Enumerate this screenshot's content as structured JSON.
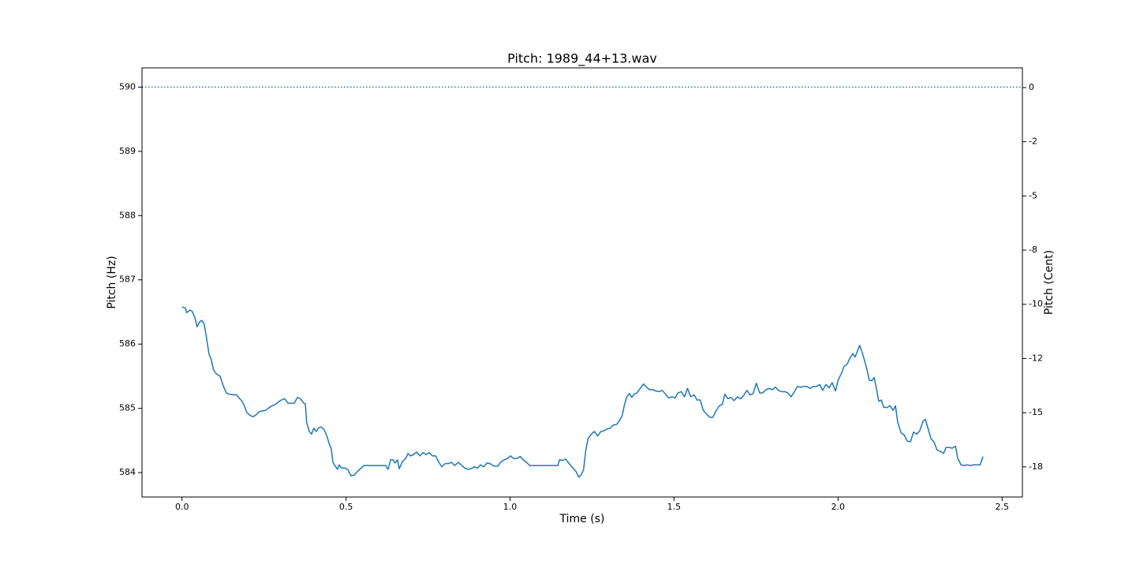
{
  "chart_data": {
    "type": "line",
    "title": "Pitch: 1989_44+13.wav",
    "x_label": "Time (s)",
    "y_label": "Pitch (Hz)",
    "y2_label": "Pitch (Cent)",
    "xlim": [
      -0.122,
      2.562
    ],
    "ylim": [
      583.62,
      590.3
    ],
    "y2lim": [
      -18.89,
      0.91
    ],
    "xticks": [
      {
        "value": 0,
        "label": "0.0"
      },
      0.5,
      {
        "value": 1,
        "label": "1.0"
      },
      1.5,
      {
        "value": 2,
        "label": "2.0"
      },
      2.5
    ],
    "yticks": [
      584,
      585,
      586,
      587,
      588,
      589,
      590
    ],
    "y2ticks": [
      0,
      {
        "value": -2.5,
        "label": "-2"
      },
      -5,
      {
        "value": -7.5,
        "label": "-8"
      },
      -10,
      {
        "value": -12.5,
        "label": "-12"
      },
      -15,
      {
        "value": -17.5,
        "label": "-18"
      }
    ],
    "reference_line": {
      "value": 590,
      "color": "#1f77b4",
      "style": "dotted"
    },
    "series": [
      {
        "color": "#1f77b4",
        "x": [
          0.0,
          0.01,
          0.014,
          0.024,
          0.031,
          0.039,
          0.046,
          0.053,
          0.06,
          0.067,
          0.075,
          0.082,
          0.089,
          0.096,
          0.104,
          0.116,
          0.125,
          0.135,
          0.144,
          0.157,
          0.166,
          0.176,
          0.183,
          0.19,
          0.197,
          0.207,
          0.217,
          0.226,
          0.236,
          0.246,
          0.255,
          0.265,
          0.275,
          0.284,
          0.294,
          0.303,
          0.313,
          0.323,
          0.332,
          0.342,
          0.352,
          0.361,
          0.371,
          0.376,
          0.38,
          0.388,
          0.395,
          0.402,
          0.409,
          0.417,
          0.424,
          0.433,
          0.441,
          0.448,
          0.455,
          0.46,
          0.467,
          0.474,
          0.479,
          0.486,
          0.498,
          0.506,
          0.515,
          0.525,
          0.535,
          0.544,
          0.554,
          0.578,
          0.602,
          0.621,
          0.628,
          0.636,
          0.643,
          0.65,
          0.657,
          0.662,
          0.672,
          0.682,
          0.689,
          0.696,
          0.706,
          0.715,
          0.725,
          0.735,
          0.744,
          0.754,
          0.763,
          0.773,
          0.783,
          0.792,
          0.802,
          0.812,
          0.821,
          0.831,
          0.843,
          0.853,
          0.862,
          0.872,
          0.881,
          0.891,
          0.901,
          0.91,
          0.92,
          0.93,
          0.939,
          0.951,
          0.963,
          0.973,
          0.983,
          0.992,
          1.002,
          1.011,
          1.021,
          1.031,
          1.04,
          1.05,
          1.06,
          1.084,
          1.108,
          1.132,
          1.146,
          1.151,
          1.161,
          1.17,
          1.18,
          1.192,
          1.202,
          1.209,
          1.216,
          1.224,
          1.231,
          1.238,
          1.248,
          1.257,
          1.267,
          1.277,
          1.286,
          1.296,
          1.305,
          1.315,
          1.325,
          1.334,
          1.342,
          1.349,
          1.356,
          1.364,
          1.371,
          1.378,
          1.387,
          1.397,
          1.407,
          1.416,
          1.426,
          1.435,
          1.445,
          1.455,
          1.464,
          1.474,
          1.484,
          1.493,
          1.503,
          1.512,
          1.522,
          1.532,
          1.541,
          1.551,
          1.561,
          1.57,
          1.58,
          1.589,
          1.599,
          1.609,
          1.618,
          1.628,
          1.638,
          1.647,
          1.655,
          1.664,
          1.674,
          1.683,
          1.693,
          1.703,
          1.712,
          1.722,
          1.732,
          1.741,
          1.751,
          1.761,
          1.77,
          1.78,
          1.79,
          1.799,
          1.809,
          1.818,
          1.828,
          1.838,
          1.847,
          1.857,
          1.867,
          1.876,
          1.886,
          1.895,
          1.905,
          1.915,
          1.924,
          1.934,
          1.944,
          1.953,
          1.963,
          1.973,
          1.982,
          1.992,
          2.001,
          2.011,
          2.018,
          2.028,
          2.035,
          2.045,
          2.052,
          2.059,
          2.066,
          2.074,
          2.081,
          2.088,
          2.095,
          2.103,
          2.11,
          2.117,
          2.124,
          2.132,
          2.139,
          2.148,
          2.158,
          2.168,
          2.175,
          2.182,
          2.192,
          2.201,
          2.211,
          2.221,
          2.23,
          2.24,
          2.249,
          2.259,
          2.266,
          2.273,
          2.283,
          2.293,
          2.302,
          2.312,
          2.322,
          2.329,
          2.339,
          2.348,
          2.358,
          2.365,
          2.375,
          2.384,
          2.394,
          2.404,
          2.413,
          2.423,
          2.433,
          2.442
        ],
        "values": [
          586.58,
          586.56,
          586.49,
          586.53,
          586.51,
          586.42,
          586.27,
          586.34,
          586.37,
          586.32,
          586.09,
          585.85,
          585.76,
          585.6,
          585.54,
          585.5,
          585.36,
          585.24,
          585.22,
          585.21,
          585.21,
          585.15,
          585.11,
          585.04,
          584.94,
          584.89,
          584.87,
          584.9,
          584.95,
          584.96,
          584.97,
          585.01,
          585.04,
          585.06,
          585.1,
          585.13,
          585.15,
          585.08,
          585.08,
          585.08,
          585.17,
          585.15,
          585.08,
          585.07,
          584.78,
          584.64,
          584.6,
          584.69,
          584.64,
          584.7,
          584.71,
          584.67,
          584.58,
          584.46,
          584.37,
          584.16,
          584.1,
          584.05,
          584.12,
          584.07,
          584.07,
          584.04,
          583.95,
          583.96,
          584.02,
          584.06,
          584.11,
          584.11,
          584.11,
          584.11,
          584.05,
          584.2,
          584.2,
          584.15,
          584.2,
          584.06,
          584.17,
          584.22,
          584.3,
          584.26,
          584.28,
          584.32,
          584.26,
          584.31,
          584.28,
          584.31,
          584.26,
          584.26,
          584.16,
          584.09,
          584.14,
          584.14,
          584.16,
          584.11,
          584.16,
          584.11,
          584.07,
          584.05,
          584.06,
          584.09,
          584.07,
          584.12,
          584.09,
          584.15,
          584.14,
          584.1,
          584.1,
          584.17,
          584.2,
          584.22,
          584.26,
          584.22,
          584.22,
          584.25,
          584.2,
          584.16,
          584.11,
          584.11,
          584.11,
          584.11,
          584.11,
          584.2,
          584.19,
          584.21,
          584.14,
          584.07,
          584.01,
          583.93,
          583.96,
          584.04,
          584.35,
          584.53,
          584.6,
          584.64,
          584.57,
          584.64,
          584.65,
          584.68,
          584.69,
          584.74,
          584.75,
          584.81,
          584.89,
          585.06,
          585.18,
          585.23,
          585.17,
          585.22,
          585.24,
          585.31,
          585.38,
          585.33,
          585.29,
          585.29,
          585.27,
          585.26,
          585.28,
          585.22,
          585.16,
          585.18,
          585.16,
          585.24,
          585.26,
          585.18,
          585.31,
          585.18,
          585.21,
          585.13,
          585.13,
          584.97,
          584.91,
          584.86,
          584.86,
          584.96,
          585.04,
          585.06,
          585.22,
          585.15,
          585.17,
          585.12,
          585.18,
          585.15,
          585.2,
          585.28,
          585.21,
          585.23,
          585.39,
          585.24,
          585.24,
          585.29,
          585.31,
          585.29,
          585.33,
          585.28,
          585.26,
          585.26,
          585.24,
          585.18,
          585.26,
          585.34,
          585.33,
          585.34,
          585.34,
          585.31,
          585.34,
          585.34,
          585.37,
          585.28,
          585.37,
          585.32,
          585.4,
          585.27,
          585.45,
          585.55,
          585.65,
          585.69,
          585.77,
          585.85,
          585.8,
          585.89,
          585.98,
          585.86,
          585.74,
          585.61,
          585.44,
          585.43,
          585.48,
          585.31,
          585.11,
          585.13,
          585.02,
          585.01,
          585.04,
          584.97,
          585.04,
          584.78,
          584.62,
          584.59,
          584.49,
          584.48,
          584.63,
          584.6,
          584.65,
          584.8,
          584.83,
          584.71,
          584.53,
          584.47,
          584.35,
          584.33,
          584.3,
          584.39,
          584.39,
          584.38,
          584.41,
          584.22,
          584.12,
          584.11,
          584.12,
          584.11,
          584.12,
          584.12,
          584.12,
          584.25
        ]
      }
    ]
  }
}
